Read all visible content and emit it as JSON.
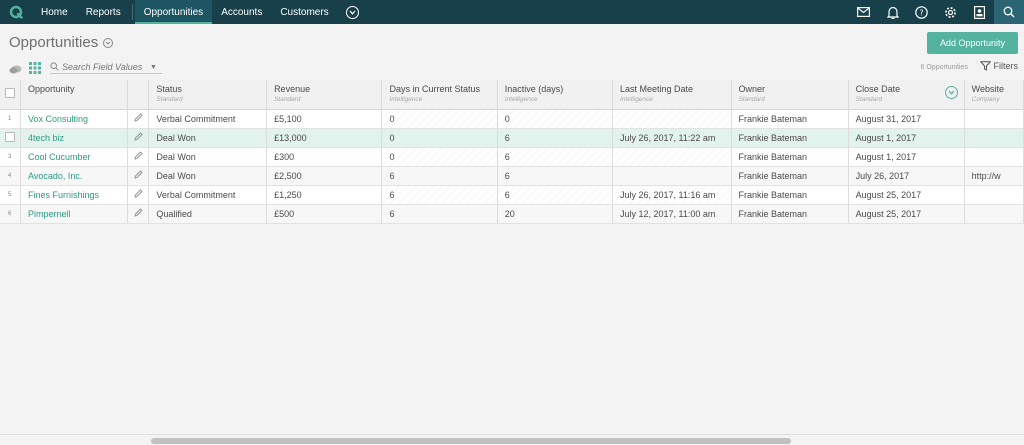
{
  "nav": {
    "items": [
      {
        "label": "Home",
        "name": "nav-home",
        "active": false
      },
      {
        "label": "Reports",
        "name": "nav-reports",
        "active": false
      },
      {
        "label": "Opportunities",
        "name": "nav-opportunities",
        "active": true
      },
      {
        "label": "Accounts",
        "name": "nav-accounts",
        "active": false
      },
      {
        "label": "Customers",
        "name": "nav-customers",
        "active": false
      }
    ],
    "icons": [
      "mail-icon",
      "bell-icon",
      "help-icon",
      "gear-icon",
      "profile-icon",
      "search-icon"
    ],
    "bg_color": "#17404b",
    "accent_color": "#53b39f"
  },
  "page": {
    "title": "Opportunities",
    "add_button": "Add Opportunity"
  },
  "toolbar": {
    "search_placeholder": "Search Field Values",
    "count_label": "6 Opportunities",
    "filters_label": "Filters"
  },
  "table": {
    "columns": [
      {
        "key": "opportunity",
        "label": "Opportunity",
        "sub": "",
        "width": 108
      },
      {
        "key": "edit",
        "label": "",
        "sub": "",
        "width": 22
      },
      {
        "key": "status",
        "label": "Status",
        "sub": "Standard",
        "width": 119
      },
      {
        "key": "revenue",
        "label": "Revenue",
        "sub": "Standard",
        "width": 119
      },
      {
        "key": "days",
        "label": "Days in Current Status",
        "sub": "Intelligence",
        "width": 119
      },
      {
        "key": "inactive",
        "label": "Inactive (days)",
        "sub": "Intelligence",
        "width": 119
      },
      {
        "key": "meeting",
        "label": "Last Meeting Date",
        "sub": "Intelligence",
        "width": 119
      },
      {
        "key": "owner",
        "label": "Owner",
        "sub": "Standard",
        "width": 119
      },
      {
        "key": "close",
        "label": "Close Date",
        "sub": "Standard",
        "width": 118
      },
      {
        "key": "website",
        "label": "Website",
        "sub": "Company",
        "width": 60
      }
    ],
    "rows": [
      {
        "num": "1",
        "opportunity": "Vox Consulting",
        "status": "Verbal Commitment",
        "revenue": "£5,100",
        "days": "0",
        "inactive": "0",
        "meeting": "",
        "owner": "Frankie Bateman",
        "close": "August 31, 2017",
        "website": ""
      },
      {
        "num": "2",
        "opportunity": "4tech biz",
        "status": "Deal Won",
        "revenue": "£13,000",
        "days": "0",
        "inactive": "6",
        "meeting": "July 26, 2017, 11:22 am",
        "owner": "Frankie Bateman",
        "close": "August 1, 2017",
        "website": ""
      },
      {
        "num": "3",
        "opportunity": "Cool Cucumber",
        "status": "Deal Won",
        "revenue": "£300",
        "days": "0",
        "inactive": "6",
        "meeting": "",
        "owner": "Frankie Bateman",
        "close": "August 1, 2017",
        "website": ""
      },
      {
        "num": "4",
        "opportunity": "Avocado, Inc.",
        "status": "Deal Won",
        "revenue": "£2,500",
        "days": "6",
        "inactive": "6",
        "meeting": "",
        "owner": "Frankie Bateman",
        "close": "July 26, 2017",
        "website": "http://w"
      },
      {
        "num": "5",
        "opportunity": "Fines Furnishings",
        "status": "Verbal Commitment",
        "revenue": "£1,250",
        "days": "6",
        "inactive": "6",
        "meeting": "July 26, 2017, 11:16 am",
        "owner": "Frankie Bateman",
        "close": "August 25, 2017",
        "website": ""
      },
      {
        "num": "6",
        "opportunity": "Pimpernell",
        "status": "Qualified",
        "revenue": "£500",
        "days": "6",
        "inactive": "20",
        "meeting": "July 12, 2017, 11:00 am",
        "owner": "Frankie Bateman",
        "close": "August 25, 2017",
        "website": ""
      }
    ],
    "selected_row": 1,
    "readonly_columns": [
      "days",
      "inactive",
      "meeting"
    ]
  }
}
